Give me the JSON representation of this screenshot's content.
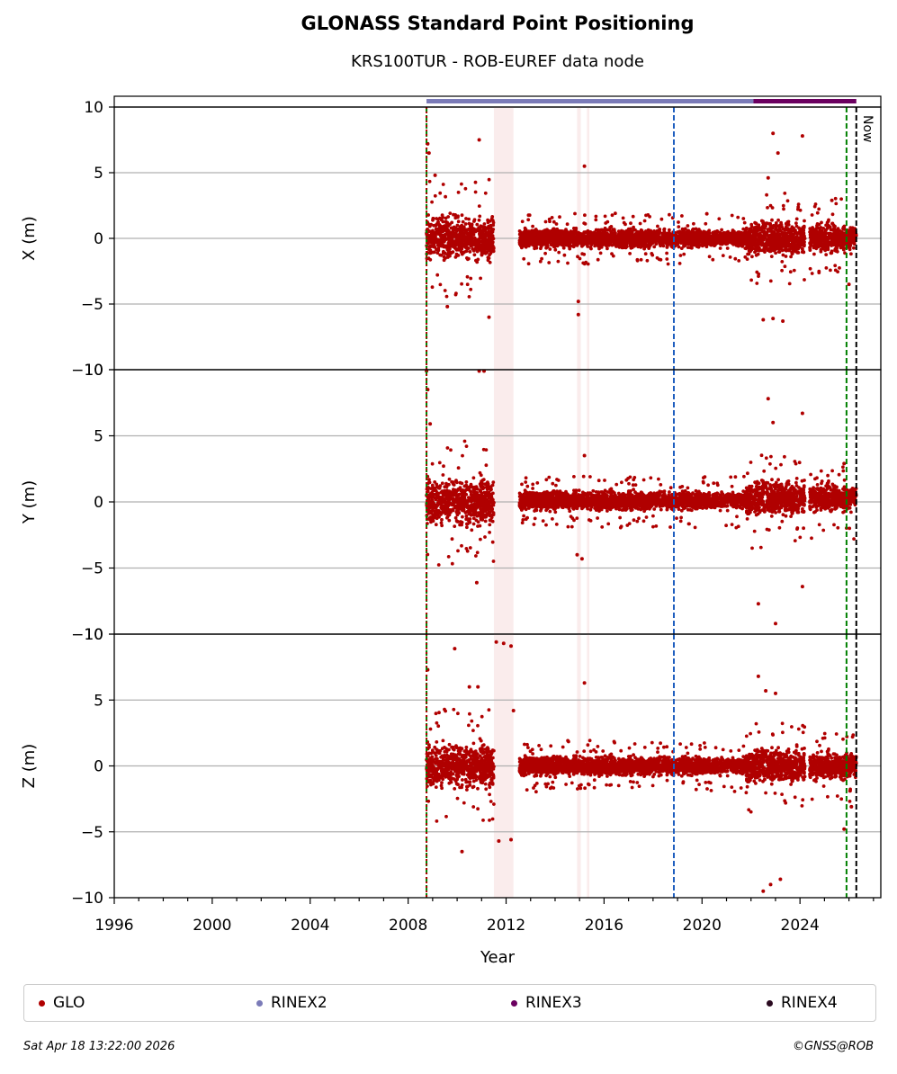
{
  "title": "GLONASS Standard Point Positioning",
  "subtitle": "KRS100TUR - ROB-EUREF data node",
  "footer": {
    "timestamp": "Sat Apr 18 13:22:00 2026",
    "credit": "©GNSS@ROB"
  },
  "legend": {
    "placement": "bottom",
    "items": [
      {
        "label": "GLO",
        "color": "#b00000"
      },
      {
        "label": "RINEX2",
        "color": "#7b7bb8"
      },
      {
        "label": "RINEX3",
        "color": "#6b0060"
      },
      {
        "label": "RINEX4",
        "color": "#2a0a20"
      }
    ]
  },
  "now_label": "Now",
  "chart_data": {
    "type": "scatter",
    "xlabel": "Year",
    "xlim": [
      1996,
      2027.3
    ],
    "x_ticks": [
      1996,
      2000,
      2004,
      2008,
      2012,
      2016,
      2020,
      2024
    ],
    "grid": "horizontal",
    "vertical_lines": [
      {
        "x": 2008.75,
        "color": "#008000",
        "style": "dashed"
      },
      {
        "x": 2008.75,
        "color": "#b00000",
        "style": "dotted"
      },
      {
        "x": 2018.85,
        "color": "#1f5fbf",
        "style": "dashed"
      },
      {
        "x": 2025.9,
        "color": "#008000",
        "style": "dashed"
      },
      {
        "x": 2026.3,
        "color": "#000000",
        "style": "dashed",
        "label": "Now"
      }
    ],
    "rinex_bar": [
      {
        "label": "RINEX2",
        "from": 2008.75,
        "to": 2022.1
      },
      {
        "label": "RINEX3",
        "from": 2022.1,
        "to": 2026.3
      }
    ],
    "panels": [
      {
        "ylabel": "X (m)",
        "ylim": [
          -10,
          10
        ],
        "y_ticks": [
          "−10",
          "−5",
          "0",
          "5",
          "10"
        ],
        "series": [
          {
            "name": "GLO",
            "segments": [
              {
                "from": 2008.75,
                "to": 2011.5,
                "mean": 0,
                "spread": 1.6
              },
              {
                "from": 2012.55,
                "to": 2021.8,
                "mean": 0,
                "spread": 0.7
              },
              {
                "from": 2021.8,
                "to": 2024.2,
                "mean": 0,
                "spread": 1.3
              },
              {
                "from": 2024.4,
                "to": 2026.3,
                "mean": 0,
                "spread": 1.1
              }
            ],
            "outliers": [
              [
                2008.8,
                7.2
              ],
              [
                2008.85,
                6.5
              ],
              [
                2009.1,
                4.8
              ],
              [
                2009.6,
                -5.2
              ],
              [
                2010.9,
                7.5
              ],
              [
                2011.3,
                -6.0
              ],
              [
                2015.2,
                5.5
              ],
              [
                2014.95,
                -5.8
              ],
              [
                2014.95,
                -4.8
              ],
              [
                2022.7,
                4.6
              ],
              [
                2022.9,
                8.0
              ],
              [
                2023.1,
                6.5
              ],
              [
                2024.1,
                7.8
              ],
              [
                2022.5,
                -6.2
              ],
              [
                2022.9,
                -6.1
              ],
              [
                2023.3,
                -6.3
              ],
              [
                2025.3,
                2.9
              ],
              [
                2026.0,
                -3.5
              ]
            ]
          }
        ]
      },
      {
        "ylabel": "Y (m)",
        "ylim": [
          -10,
          10
        ],
        "y_ticks": [
          "−10",
          "−5",
          "0",
          "5",
          "10"
        ],
        "series": [
          {
            "name": "GLO",
            "segments": [
              {
                "from": 2008.75,
                "to": 2011.5,
                "mean": 0,
                "spread": 1.7
              },
              {
                "from": 2012.55,
                "to": 2021.8,
                "mean": 0.1,
                "spread": 0.7
              },
              {
                "from": 2021.8,
                "to": 2024.2,
                "mean": 0.3,
                "spread": 1.3
              },
              {
                "from": 2024.4,
                "to": 2026.3,
                "mean": 0.3,
                "spread": 1.0
              }
            ],
            "outliers": [
              [
                2008.75,
                9.9
              ],
              [
                2008.8,
                8.5
              ],
              [
                2008.9,
                5.9
              ],
              [
                2010.8,
                -6.1
              ],
              [
                2010.9,
                9.9
              ],
              [
                2011.1,
                9.9
              ],
              [
                2015.2,
                3.5
              ],
              [
                2014.9,
                -4.0
              ],
              [
                2015.1,
                -4.3
              ],
              [
                2022.7,
                7.8
              ],
              [
                2022.9,
                6.0
              ],
              [
                2024.1,
                6.7
              ],
              [
                2022.3,
                -7.7
              ],
              [
                2023.0,
                -9.2
              ],
              [
                2024.1,
                -6.4
              ],
              [
                2025.8,
                2.9
              ]
            ]
          }
        ]
      },
      {
        "ylabel": "Z (m)",
        "ylim": [
          -10,
          10
        ],
        "y_ticks": [
          "−10",
          "−5",
          "0",
          "5",
          "10"
        ],
        "series": [
          {
            "name": "GLO",
            "segments": [
              {
                "from": 2008.75,
                "to": 2011.5,
                "mean": 0,
                "spread": 1.6
              },
              {
                "from": 2012.55,
                "to": 2021.8,
                "mean": 0,
                "spread": 0.7
              },
              {
                "from": 2021.8,
                "to": 2024.2,
                "mean": 0,
                "spread": 1.3
              },
              {
                "from": 2024.4,
                "to": 2026.3,
                "mean": 0,
                "spread": 1.0
              }
            ],
            "outliers": [
              [
                2008.8,
                7.3
              ],
              [
                2009.9,
                8.9
              ],
              [
                2010.5,
                6.0
              ],
              [
                2010.85,
                6.0
              ],
              [
                2011.6,
                9.4
              ],
              [
                2011.9,
                9.3
              ],
              [
                2012.2,
                9.1
              ],
              [
                2012.3,
                4.2
              ],
              [
                2015.2,
                6.3
              ],
              [
                2011.7,
                -5.7
              ],
              [
                2012.2,
                -5.6
              ],
              [
                2010.2,
                -6.5
              ],
              [
                2022.3,
                6.8
              ],
              [
                2022.6,
                5.7
              ],
              [
                2023.0,
                5.5
              ],
              [
                2022.5,
                -9.5
              ],
              [
                2022.8,
                -9.0
              ],
              [
                2023.2,
                -8.6
              ],
              [
                2025.8,
                -4.8
              ],
              [
                2026.1,
                -3.1
              ]
            ]
          }
        ]
      }
    ]
  }
}
